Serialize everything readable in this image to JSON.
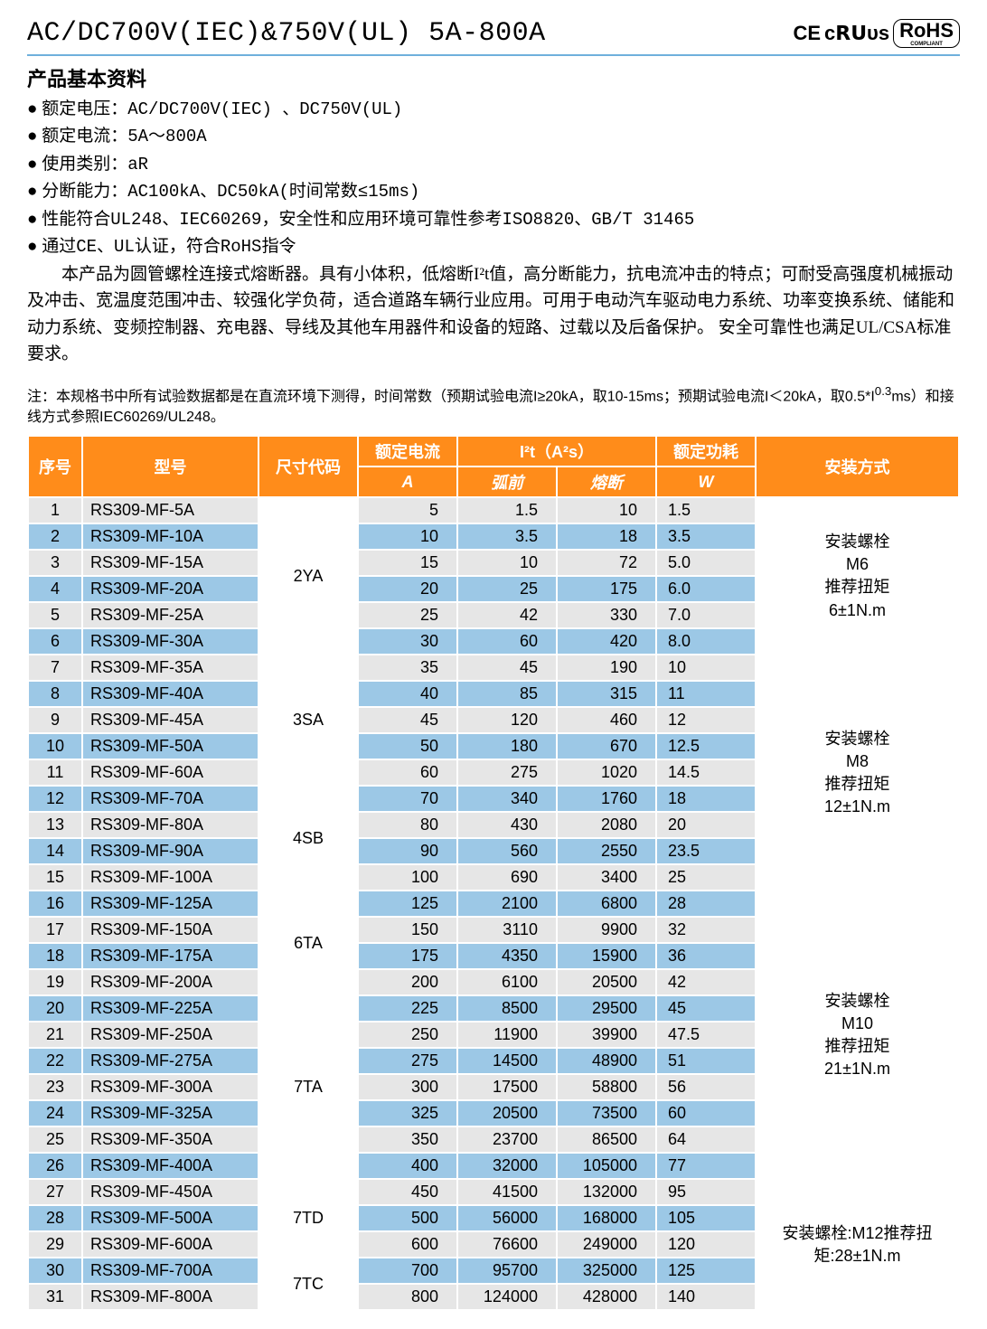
{
  "header": {
    "title": "AC/DC700V(IEC)&750V(UL) 5A-800A",
    "cert_ce": "CE",
    "cert_cru": "c𝗥𝗨ᴜs",
    "cert_rohs_top": "RoHS",
    "cert_rohs_bot": "COMPLIANT"
  },
  "section_heading": "产品基本资料",
  "specs": [
    {
      "label": "额定电压：",
      "value": "AC/DC700V(IEC) 、DC750V(UL)"
    },
    {
      "label": "额定电流：",
      "value": "5A～800A"
    },
    {
      "label": "使用类别：",
      "value": "aR"
    },
    {
      "label": "分断能力：",
      "value": "AC100kA、DC50kA(时间常数≤15ms)"
    },
    {
      "label": "",
      "value": "性能符合UL248、IEC60269，安全性和应用环境可靠性参考ISO8820、GB/T 31465"
    },
    {
      "label": "",
      "value": "通过CE、UL认证，符合RoHS指令"
    }
  ],
  "description": "本产品为圆管螺栓连接式熔断器。具有小体积，低熔断I²t值，高分断能力，抗电流冲击的特点；可耐受高强度机械振动及冲击、宽温度范围冲击、较强化学负荷，适合道路车辆行业应用。可用于电动汽车驱动电力系统、功率变换系统、储能和动力系统、变频控制器、充电器、导线及其他车用器件和设备的短路、过载以及后备保护。 安全可靠性也满足UL/CSA标准要求。",
  "note_prefix": "注：本规格书中所有试验数据都是在直流环境下测得，时间常数（预期试验电流I≥20kA，取10-15ms；预期试验电流I＜20kA，取0.5*I",
  "note_sup": "0.3",
  "note_suffix": "ms）和接线方式参照IEC60269/UL248。",
  "columns": {
    "seq": "序号",
    "model": "型号",
    "size": "尺寸代码",
    "current_top": "额定电流",
    "current_unit": "A",
    "i2t_top": "I²t（A²s）",
    "i2t_pre": "弧前",
    "i2t_melt": "熔断",
    "power_top": "额定功耗",
    "power_unit": "W",
    "install": "安装方式"
  },
  "install_texts": {
    "g1": "安装螺栓\nM6\n推荐扭矩\n6±1N.m",
    "g2": "安装螺栓\nM8\n推荐扭矩\n12±1N.m",
    "g3": "安装螺栓\nM10\n推荐扭矩\n21±1N.m",
    "g4": "安装螺栓:M12推荐扭矩:28±1N.m"
  },
  "size_groups": [
    {
      "code": "2YA",
      "span": 6
    },
    {
      "code": "3SA",
      "span": 5
    },
    {
      "code": "4SB",
      "span": 4
    },
    {
      "code": "6TA",
      "span": 4
    },
    {
      "code": "7TA",
      "span": 7
    },
    {
      "code": "7TD",
      "span": 3
    },
    {
      "code": "7TC",
      "span": 2
    }
  ],
  "install_groups": [
    {
      "key": "g1",
      "span": 6
    },
    {
      "key": "g2",
      "span": 9
    },
    {
      "key": "g3",
      "span": 11
    },
    {
      "key": "g4",
      "span": 5
    }
  ],
  "rows": [
    {
      "seq": 1,
      "model": "RS309-MF-5A",
      "current": "5",
      "pre": "1.5",
      "melt": "10",
      "power": "1.5"
    },
    {
      "seq": 2,
      "model": "RS309-MF-10A",
      "current": "10",
      "pre": "3.5",
      "melt": "18",
      "power": "3.5"
    },
    {
      "seq": 3,
      "model": "RS309-MF-15A",
      "current": "15",
      "pre": "10",
      "melt": "72",
      "power": "5.0"
    },
    {
      "seq": 4,
      "model": "RS309-MF-20A",
      "current": "20",
      "pre": "25",
      "melt": "175",
      "power": "6.0"
    },
    {
      "seq": 5,
      "model": "RS309-MF-25A",
      "current": "25",
      "pre": "42",
      "melt": "330",
      "power": "7.0"
    },
    {
      "seq": 6,
      "model": "RS309-MF-30A",
      "current": "30",
      "pre": "60",
      "melt": "420",
      "power": "8.0"
    },
    {
      "seq": 7,
      "model": "RS309-MF-35A",
      "current": "35",
      "pre": "45",
      "melt": "190",
      "power": "10"
    },
    {
      "seq": 8,
      "model": "RS309-MF-40A",
      "current": "40",
      "pre": "85",
      "melt": "315",
      "power": "11"
    },
    {
      "seq": 9,
      "model": "RS309-MF-45A",
      "current": "45",
      "pre": "120",
      "melt": "460",
      "power": "12"
    },
    {
      "seq": 10,
      "model": "RS309-MF-50A",
      "current": "50",
      "pre": "180",
      "melt": "670",
      "power": "12.5"
    },
    {
      "seq": 11,
      "model": "RS309-MF-60A",
      "current": "60",
      "pre": "275",
      "melt": "1020",
      "power": "14.5"
    },
    {
      "seq": 12,
      "model": "RS309-MF-70A",
      "current": "70",
      "pre": "340",
      "melt": "1760",
      "power": "18"
    },
    {
      "seq": 13,
      "model": "RS309-MF-80A",
      "current": "80",
      "pre": "430",
      "melt": "2080",
      "power": "20"
    },
    {
      "seq": 14,
      "model": "RS309-MF-90A",
      "current": "90",
      "pre": "560",
      "melt": "2550",
      "power": "23.5"
    },
    {
      "seq": 15,
      "model": "RS309-MF-100A",
      "current": "100",
      "pre": "690",
      "melt": "3400",
      "power": "25"
    },
    {
      "seq": 16,
      "model": "RS309-MF-125A",
      "current": "125",
      "pre": "2100",
      "melt": "6800",
      "power": "28"
    },
    {
      "seq": 17,
      "model": "RS309-MF-150A",
      "current": "150",
      "pre": "3110",
      "melt": "9900",
      "power": "32"
    },
    {
      "seq": 18,
      "model": "RS309-MF-175A",
      "current": "175",
      "pre": "4350",
      "melt": "15900",
      "power": "36"
    },
    {
      "seq": 19,
      "model": "RS309-MF-200A",
      "current": "200",
      "pre": "6100",
      "melt": "20500",
      "power": "42"
    },
    {
      "seq": 20,
      "model": "RS309-MF-225A",
      "current": "225",
      "pre": "8500",
      "melt": "29500",
      "power": "45"
    },
    {
      "seq": 21,
      "model": "RS309-MF-250A",
      "current": "250",
      "pre": "11900",
      "melt": "39900",
      "power": "47.5"
    },
    {
      "seq": 22,
      "model": "RS309-MF-275A",
      "current": "275",
      "pre": "14500",
      "melt": "48900",
      "power": "51"
    },
    {
      "seq": 23,
      "model": "RS309-MF-300A",
      "current": "300",
      "pre": "17500",
      "melt": "58800",
      "power": "56"
    },
    {
      "seq": 24,
      "model": "RS309-MF-325A",
      "current": "325",
      "pre": "20500",
      "melt": "73500",
      "power": "60"
    },
    {
      "seq": 25,
      "model": "RS309-MF-350A",
      "current": "350",
      "pre": "23700",
      "melt": "86500",
      "power": "64"
    },
    {
      "seq": 26,
      "model": "RS309-MF-400A",
      "current": "400",
      "pre": "32000",
      "melt": "105000",
      "power": "77"
    },
    {
      "seq": 27,
      "model": "RS309-MF-450A",
      "current": "450",
      "pre": "41500",
      "melt": "132000",
      "power": "95"
    },
    {
      "seq": 28,
      "model": "RS309-MF-500A",
      "current": "500",
      "pre": "56000",
      "melt": "168000",
      "power": "105"
    },
    {
      "seq": 29,
      "model": "RS309-MF-600A",
      "current": "600",
      "pre": "76600",
      "melt": "249000",
      "power": "120"
    },
    {
      "seq": 30,
      "model": "RS309-MF-700A",
      "current": "700",
      "pre": "95700",
      "melt": "325000",
      "power": "125"
    },
    {
      "seq": 31,
      "model": "RS309-MF-800A",
      "current": "800",
      "pre": "124000",
      "melt": "428000",
      "power": "140"
    }
  ],
  "colors": {
    "header_bg": "#ff8c1a",
    "header_fg": "#ffffff",
    "row_odd": "#e6e6e6",
    "row_even": "#9cc8e6",
    "rule": "#6fb0dc"
  }
}
